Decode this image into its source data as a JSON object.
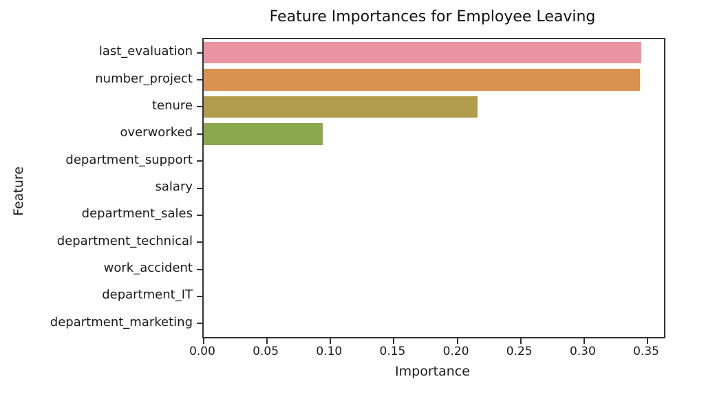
{
  "chart_data": {
    "type": "bar",
    "orientation": "horizontal",
    "title": "Feature Importances for Employee Leaving",
    "xlabel": "Importance",
    "ylabel": "Feature",
    "categories": [
      "last_evaluation",
      "number_project",
      "tenure",
      "overworked",
      "department_support",
      "salary",
      "department_sales",
      "department_technical",
      "work_accident",
      "department_IT",
      "department_marketing"
    ],
    "values": [
      0.345,
      0.344,
      0.216,
      0.094,
      0,
      0,
      0,
      0,
      0,
      0,
      0
    ],
    "bar_colors": [
      "#ea93a1",
      "#d9914f",
      "#b09c4a",
      "#8ca84f",
      "#5bb06b",
      "#3aaf8f",
      "#39acab",
      "#48a7cd",
      "#7f9df1",
      "#c18ef0",
      "#eb84d3"
    ],
    "xlim": [
      0,
      0.363
    ],
    "xticks": [
      0.0,
      0.05,
      0.1,
      0.15,
      0.2,
      0.25,
      0.3,
      0.35
    ],
    "xtick_labels": [
      "0.00",
      "0.05",
      "0.10",
      "0.15",
      "0.20",
      "0.25",
      "0.30",
      "0.35"
    ],
    "grid": false,
    "legend": "none",
    "bar_height_fraction": 0.8
  },
  "colors": {
    "spine": "#333333",
    "text": "#1a1a1a",
    "background": "#ffffff"
  }
}
